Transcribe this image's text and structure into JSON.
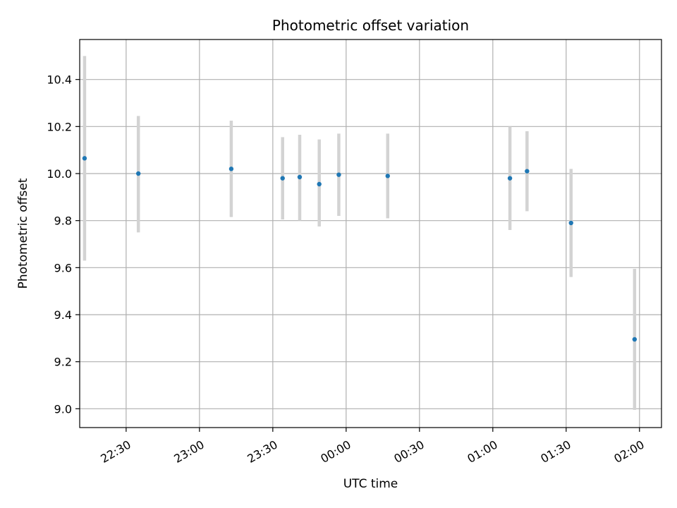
{
  "chart_data": {
    "type": "scatter",
    "title": "Photometric offset variation",
    "xlabel": "UTC time",
    "ylabel": "Photometric offset",
    "x_ticks": [
      "22:30",
      "23:00",
      "23:30",
      "00:00",
      "00:30",
      "01:00",
      "01:30",
      "02:00"
    ],
    "y_ticks": [
      "9.0",
      "9.2",
      "9.4",
      "9.6",
      "9.8",
      "10.0",
      "10.2",
      "10.4"
    ],
    "xlim": [
      "22:11",
      "02:09"
    ],
    "ylim": [
      8.92,
      10.57
    ],
    "grid": true,
    "colors": {
      "marker": "#1f77b4",
      "errorbar": "#d3d3d3",
      "grid": "#b0b0b0",
      "axes": "#000000"
    },
    "points": [
      {
        "x": "22:13",
        "y": 10.065,
        "yerr_low": 9.63,
        "yerr_high": 10.5
      },
      {
        "x": "22:35",
        "y": 10.0,
        "yerr_low": 9.75,
        "yerr_high": 10.245
      },
      {
        "x": "23:13",
        "y": 10.02,
        "yerr_low": 9.815,
        "yerr_high": 10.225
      },
      {
        "x": "23:34",
        "y": 9.98,
        "yerr_low": 9.805,
        "yerr_high": 10.155
      },
      {
        "x": "23:41",
        "y": 9.985,
        "yerr_low": 9.8,
        "yerr_high": 10.165
      },
      {
        "x": "23:49",
        "y": 9.955,
        "yerr_low": 9.775,
        "yerr_high": 10.145
      },
      {
        "x": "23:57",
        "y": 9.995,
        "yerr_low": 9.82,
        "yerr_high": 10.17
      },
      {
        "x": "00:17",
        "y": 9.99,
        "yerr_low": 9.81,
        "yerr_high": 10.17
      },
      {
        "x": "01:07",
        "y": 9.98,
        "yerr_low": 9.76,
        "yerr_high": 10.2
      },
      {
        "x": "01:14",
        "y": 10.01,
        "yerr_low": 9.84,
        "yerr_high": 10.18
      },
      {
        "x": "01:32",
        "y": 9.79,
        "yerr_low": 9.56,
        "yerr_high": 10.02
      },
      {
        "x": "01:58",
        "y": 9.295,
        "yerr_low": 8.995,
        "yerr_high": 9.595
      }
    ]
  }
}
